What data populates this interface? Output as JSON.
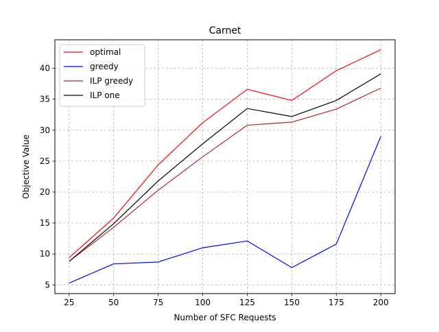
{
  "chart_data": {
    "type": "line",
    "title": "Carnet",
    "xlabel": "Number of SFC Requests",
    "ylabel": "Objective Value",
    "x": [
      25,
      50,
      75,
      100,
      125,
      150,
      175,
      200
    ],
    "xlim": [
      17,
      208
    ],
    "ylim": [
      3.6,
      44.6
    ],
    "xticks": [
      25,
      50,
      75,
      100,
      125,
      150,
      175,
      200
    ],
    "yticks": [
      5,
      10,
      15,
      20,
      25,
      30,
      35,
      40
    ],
    "grid": true,
    "legend_position": "upper-left",
    "series": [
      {
        "name": "optimal",
        "color": "#ff0000",
        "values": [
          9.4,
          15.8,
          24.4,
          31.2,
          36.6,
          34.8,
          39.6,
          43.0
        ]
      },
      {
        "name": "greedy",
        "color": "#0000ff",
        "values": [
          5.3,
          8.4,
          8.7,
          11.0,
          12.1,
          7.8,
          11.6,
          29.0
        ]
      },
      {
        "name": "ILP greedy",
        "color": "#b22222",
        "values": [
          8.8,
          14.3,
          20.3,
          25.7,
          30.8,
          31.3,
          33.4,
          36.8
        ]
      },
      {
        "name": "ILP one",
        "color": "#000000",
        "values": [
          8.8,
          14.9,
          21.8,
          27.8,
          33.5,
          32.2,
          34.8,
          39.1
        ]
      }
    ]
  }
}
